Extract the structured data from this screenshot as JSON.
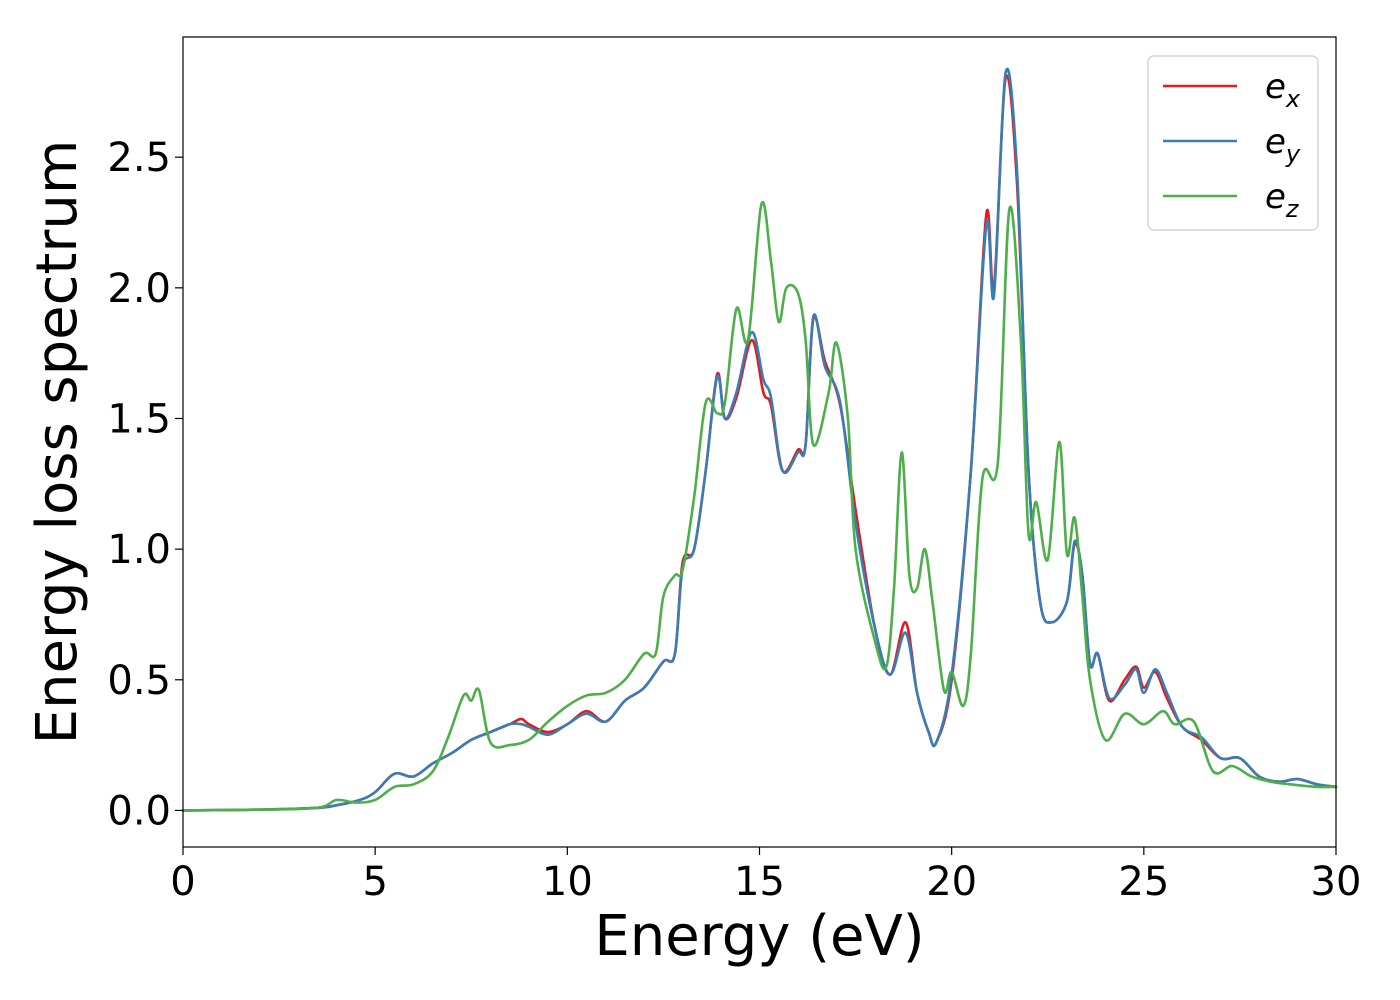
{
  "chart_data": {
    "type": "line",
    "xlabel": "Energy (eV)",
    "ylabel": "Energy loss spectrum",
    "xlim": [
      0,
      30
    ],
    "ylim": [
      -0.14,
      2.96
    ],
    "xticks": [
      0,
      5,
      10,
      15,
      20,
      25,
      30
    ],
    "xtick_labels": [
      "0",
      "5",
      "10",
      "15",
      "20",
      "25",
      "30"
    ],
    "yticks": [
      0.0,
      0.5,
      1.0,
      1.5,
      2.0,
      2.5
    ],
    "ytick_labels": [
      "0.0",
      "0.5",
      "1.0",
      "1.5",
      "2.0",
      "2.5"
    ],
    "grid": false,
    "legend_position": "top-right",
    "series": [
      {
        "name": "e_x",
        "label_base": "e",
        "label_sub": "x",
        "color": "#e41a1c",
        "points": [
          [
            0,
            0
          ],
          [
            2,
            0.003
          ],
          [
            3.5,
            0.01
          ],
          [
            4,
            0.02
          ],
          [
            4.6,
            0.04
          ],
          [
            5,
            0.07
          ],
          [
            5.5,
            0.14
          ],
          [
            6,
            0.13
          ],
          [
            6.5,
            0.18
          ],
          [
            7,
            0.22
          ],
          [
            7.5,
            0.27
          ],
          [
            8,
            0.3
          ],
          [
            8.5,
            0.33
          ],
          [
            8.8,
            0.35
          ],
          [
            9,
            0.33
          ],
          [
            9.5,
            0.3
          ],
          [
            10,
            0.33
          ],
          [
            10.5,
            0.38
          ],
          [
            11,
            0.34
          ],
          [
            11.5,
            0.42
          ],
          [
            12,
            0.47
          ],
          [
            12.5,
            0.57
          ],
          [
            12.8,
            0.6
          ],
          [
            13,
            0.95
          ],
          [
            13.3,
            1.0
          ],
          [
            13.6,
            1.3
          ],
          [
            13.9,
            1.67
          ],
          [
            14.1,
            1.5
          ],
          [
            14.4,
            1.58
          ],
          [
            14.8,
            1.8
          ],
          [
            15.1,
            1.6
          ],
          [
            15.3,
            1.55
          ],
          [
            15.6,
            1.3
          ],
          [
            16,
            1.38
          ],
          [
            16.2,
            1.4
          ],
          [
            16.4,
            1.88
          ],
          [
            16.7,
            1.72
          ],
          [
            17.1,
            1.55
          ],
          [
            17.5,
            1.15
          ],
          [
            18,
            0.7
          ],
          [
            18.4,
            0.52
          ],
          [
            18.8,
            0.72
          ],
          [
            19.1,
            0.45
          ],
          [
            19.4,
            0.3
          ],
          [
            19.6,
            0.26
          ],
          [
            20,
            0.5
          ],
          [
            20.5,
            1.3
          ],
          [
            20.9,
            2.28
          ],
          [
            21.1,
            2.0
          ],
          [
            21.4,
            2.8
          ],
          [
            21.7,
            2.4
          ],
          [
            22,
            1.3
          ],
          [
            22.3,
            0.8
          ],
          [
            22.6,
            0.72
          ],
          [
            23,
            0.8
          ],
          [
            23.2,
            1.02
          ],
          [
            23.4,
            0.9
          ],
          [
            23.6,
            0.56
          ],
          [
            23.8,
            0.6
          ],
          [
            24.1,
            0.42
          ],
          [
            24.5,
            0.5
          ],
          [
            24.8,
            0.55
          ],
          [
            25,
            0.47
          ],
          [
            25.3,
            0.53
          ],
          [
            25.6,
            0.43
          ],
          [
            26,
            0.32
          ],
          [
            26.5,
            0.27
          ],
          [
            27,
            0.2
          ],
          [
            27.5,
            0.2
          ],
          [
            28,
            0.13
          ],
          [
            28.5,
            0.11
          ],
          [
            29,
            0.12
          ],
          [
            29.5,
            0.1
          ],
          [
            30,
            0.09
          ]
        ]
      },
      {
        "name": "e_y",
        "label_base": "e",
        "label_sub": "y",
        "color": "#377eb8",
        "points": [
          [
            0,
            0
          ],
          [
            2,
            0.003
          ],
          [
            3.5,
            0.01
          ],
          [
            4,
            0.02
          ],
          [
            4.6,
            0.04
          ],
          [
            5,
            0.07
          ],
          [
            5.5,
            0.14
          ],
          [
            6,
            0.13
          ],
          [
            6.5,
            0.18
          ],
          [
            7,
            0.22
          ],
          [
            7.5,
            0.27
          ],
          [
            8,
            0.3
          ],
          [
            8.5,
            0.33
          ],
          [
            8.8,
            0.33
          ],
          [
            9,
            0.32
          ],
          [
            9.5,
            0.29
          ],
          [
            10,
            0.33
          ],
          [
            10.5,
            0.37
          ],
          [
            11,
            0.34
          ],
          [
            11.5,
            0.42
          ],
          [
            12,
            0.47
          ],
          [
            12.5,
            0.57
          ],
          [
            12.8,
            0.6
          ],
          [
            13,
            0.93
          ],
          [
            13.3,
            1.0
          ],
          [
            13.6,
            1.3
          ],
          [
            13.9,
            1.66
          ],
          [
            14.1,
            1.5
          ],
          [
            14.4,
            1.6
          ],
          [
            14.8,
            1.83
          ],
          [
            15.1,
            1.65
          ],
          [
            15.3,
            1.58
          ],
          [
            15.6,
            1.3
          ],
          [
            16,
            1.37
          ],
          [
            16.2,
            1.4
          ],
          [
            16.4,
            1.89
          ],
          [
            16.7,
            1.7
          ],
          [
            17.1,
            1.56
          ],
          [
            17.5,
            1.1
          ],
          [
            18,
            0.7
          ],
          [
            18.4,
            0.52
          ],
          [
            18.8,
            0.68
          ],
          [
            19.1,
            0.45
          ],
          [
            19.4,
            0.3
          ],
          [
            19.6,
            0.26
          ],
          [
            20,
            0.52
          ],
          [
            20.5,
            1.3
          ],
          [
            20.9,
            2.24
          ],
          [
            21.1,
            1.97
          ],
          [
            21.4,
            2.82
          ],
          [
            21.7,
            2.45
          ],
          [
            22,
            1.3
          ],
          [
            22.3,
            0.8
          ],
          [
            22.6,
            0.72
          ],
          [
            23,
            0.8
          ],
          [
            23.2,
            1.03
          ],
          [
            23.4,
            0.9
          ],
          [
            23.6,
            0.56
          ],
          [
            23.8,
            0.6
          ],
          [
            24.1,
            0.43
          ],
          [
            24.5,
            0.48
          ],
          [
            24.8,
            0.54
          ],
          [
            25,
            0.45
          ],
          [
            25.3,
            0.54
          ],
          [
            25.6,
            0.45
          ],
          [
            26,
            0.32
          ],
          [
            26.5,
            0.28
          ],
          [
            27,
            0.2
          ],
          [
            27.5,
            0.2
          ],
          [
            28,
            0.13
          ],
          [
            28.5,
            0.11
          ],
          [
            29,
            0.12
          ],
          [
            29.5,
            0.1
          ],
          [
            30,
            0.09
          ]
        ]
      },
      {
        "name": "e_z",
        "label_base": "e",
        "label_sub": "z",
        "color": "#4daf4a",
        "points": [
          [
            0,
            0
          ],
          [
            2,
            0.003
          ],
          [
            3.5,
            0.01
          ],
          [
            4,
            0.04
          ],
          [
            4.5,
            0.03
          ],
          [
            5,
            0.04
          ],
          [
            5.5,
            0.09
          ],
          [
            6,
            0.1
          ],
          [
            6.5,
            0.15
          ],
          [
            6.9,
            0.28
          ],
          [
            7.3,
            0.44
          ],
          [
            7.5,
            0.42
          ],
          [
            7.7,
            0.46
          ],
          [
            8,
            0.26
          ],
          [
            8.5,
            0.25
          ],
          [
            9,
            0.27
          ],
          [
            9.5,
            0.34
          ],
          [
            10,
            0.4
          ],
          [
            10.5,
            0.44
          ],
          [
            11,
            0.45
          ],
          [
            11.5,
            0.5
          ],
          [
            12,
            0.6
          ],
          [
            12.3,
            0.6
          ],
          [
            12.5,
            0.82
          ],
          [
            12.8,
            0.9
          ],
          [
            13,
            0.92
          ],
          [
            13.3,
            1.2
          ],
          [
            13.6,
            1.56
          ],
          [
            13.9,
            1.52
          ],
          [
            14.1,
            1.56
          ],
          [
            14.4,
            1.92
          ],
          [
            14.7,
            1.8
          ],
          [
            15.05,
            2.32
          ],
          [
            15.3,
            2.1
          ],
          [
            15.5,
            1.87
          ],
          [
            15.7,
            2.0
          ],
          [
            16,
            1.98
          ],
          [
            16.2,
            1.8
          ],
          [
            16.4,
            1.4
          ],
          [
            16.8,
            1.6
          ],
          [
            17,
            1.79
          ],
          [
            17.3,
            1.5
          ],
          [
            17.5,
            1.0
          ],
          [
            18,
            0.65
          ],
          [
            18.3,
            0.55
          ],
          [
            18.5,
            0.85
          ],
          [
            18.7,
            1.37
          ],
          [
            18.9,
            0.9
          ],
          [
            19.1,
            0.85
          ],
          [
            19.3,
            1.0
          ],
          [
            19.5,
            0.8
          ],
          [
            19.8,
            0.46
          ],
          [
            20,
            0.53
          ],
          [
            20.3,
            0.4
          ],
          [
            20.5,
            0.6
          ],
          [
            20.8,
            1.27
          ],
          [
            21.2,
            1.33
          ],
          [
            21.5,
            2.3
          ],
          [
            21.8,
            1.8
          ],
          [
            22,
            1.06
          ],
          [
            22.2,
            1.18
          ],
          [
            22.5,
            0.96
          ],
          [
            22.8,
            1.41
          ],
          [
            23,
            0.98
          ],
          [
            23.2,
            1.12
          ],
          [
            23.4,
            0.82
          ],
          [
            23.6,
            0.5
          ],
          [
            24,
            0.27
          ],
          [
            24.5,
            0.37
          ],
          [
            25,
            0.33
          ],
          [
            25.5,
            0.38
          ],
          [
            25.8,
            0.33
          ],
          [
            26.3,
            0.34
          ],
          [
            26.8,
            0.15
          ],
          [
            27.3,
            0.17
          ],
          [
            27.8,
            0.13
          ],
          [
            28.3,
            0.11
          ],
          [
            28.8,
            0.1
          ],
          [
            29.5,
            0.09
          ],
          [
            30,
            0.09
          ]
        ]
      }
    ]
  }
}
